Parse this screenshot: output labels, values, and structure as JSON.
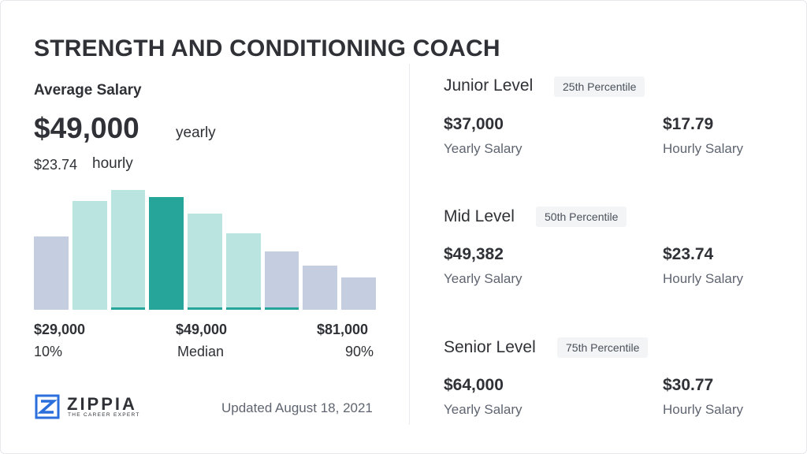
{
  "title": "STRENGTH AND CONDITIONING COACH",
  "average": {
    "label": "Average Salary",
    "yearly_value": "$49,000",
    "yearly_unit": "yearly",
    "hourly_value": "$23.74",
    "hourly_unit": "hourly"
  },
  "chart_data": {
    "type": "bar",
    "values": [
      61,
      91,
      100,
      94,
      80,
      64,
      49,
      37,
      27
    ],
    "bar_kinds": [
      "outer",
      "inner",
      "inner",
      "median",
      "inner",
      "inner",
      "outer",
      "outer",
      "outer"
    ],
    "underlined": [
      false,
      false,
      true,
      false,
      true,
      true,
      true,
      false,
      false
    ],
    "ylim": [
      0,
      100
    ],
    "colors": {
      "outer": "#c5cde0",
      "inner": "#b9e4e0",
      "median": "#26a69a",
      "underline": "#26a69a"
    }
  },
  "scale": {
    "low_value": "$29,000",
    "low_label": "10%",
    "mid_value": "$49,000",
    "mid_label": "Median",
    "high_value": "$81,000",
    "high_label": "90%"
  },
  "brand": {
    "name": "ZIPPIA",
    "tagline": "THE CAREER EXPERT",
    "logo_icon": "zippia-z-logo-icon",
    "color": "#2a6fdb"
  },
  "updated": "Updated August 18, 2021",
  "levels": [
    {
      "name": "Junior Level",
      "percentile": "25th Percentile",
      "yearly_value": "$37,000",
      "yearly_label": "Yearly Salary",
      "hourly_value": "$17.79",
      "hourly_label": "Hourly Salary"
    },
    {
      "name": "Mid Level",
      "percentile": "50th Percentile",
      "yearly_value": "$49,382",
      "yearly_label": "Yearly Salary",
      "hourly_value": "$23.74",
      "hourly_label": "Hourly Salary"
    },
    {
      "name": "Senior Level",
      "percentile": "75th Percentile",
      "yearly_value": "$64,000",
      "yearly_label": "Yearly Salary",
      "hourly_value": "$30.77",
      "hourly_label": "Hourly Salary"
    }
  ]
}
